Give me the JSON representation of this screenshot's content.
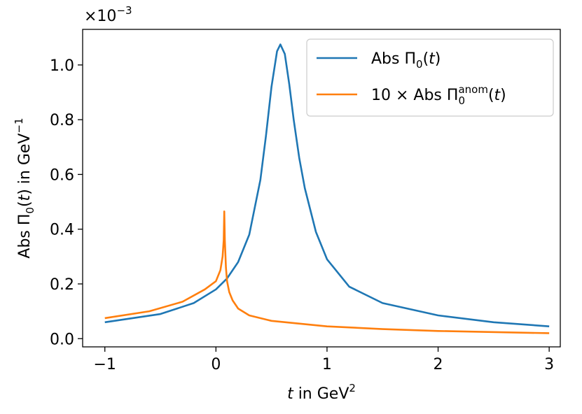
{
  "chart_data": {
    "type": "line",
    "axis_multiplier": [
      {
        "text": "×10"
      },
      {
        "text": "−3",
        "sup": true
      }
    ],
    "x_label": [
      {
        "text": "t",
        "italic": true
      },
      {
        "text": " in GeV"
      },
      {
        "text": "2",
        "sup": true
      }
    ],
    "y_label": [
      {
        "text": "Abs Π"
      },
      {
        "text": "0",
        "sub": true
      },
      {
        "text": "("
      },
      {
        "text": "t",
        "italic": true
      },
      {
        "text": ") in GeV"
      },
      {
        "text": "−1",
        "sup": true
      }
    ],
    "xlim": [
      -1.2,
      3.1
    ],
    "xticks": [
      {
        "value": -1,
        "label": "−1"
      },
      0,
      1,
      2,
      3
    ],
    "ylim": [
      -0.03,
      1.13
    ],
    "yticks": [
      {
        "value": 0,
        "label": "0.0"
      },
      0.2,
      0.4,
      0.6,
      0.8,
      {
        "value": 1,
        "label": "1.0"
      }
    ],
    "legend": "upper right",
    "series": [
      {
        "name": [
          {
            "text": "Abs Π"
          },
          {
            "text": "0",
            "sub": true
          },
          {
            "text": "("
          },
          {
            "text": "t",
            "italic": true
          },
          {
            "text": ")"
          }
        ],
        "color": "#1f77b4",
        "x": [
          -1,
          -0.5,
          -0.2,
          0,
          0.1,
          0.2,
          0.3,
          0.4,
          0.45,
          0.5,
          0.55,
          0.58,
          0.62,
          0.66,
          0.7,
          0.75,
          0.8,
          0.9,
          1.0,
          1.2,
          1.5,
          2.0,
          2.5,
          3.0
        ],
        "values": [
          0.06,
          0.09,
          0.13,
          0.18,
          0.22,
          0.28,
          0.38,
          0.58,
          0.74,
          0.92,
          1.05,
          1.075,
          1.04,
          0.93,
          0.8,
          0.66,
          0.55,
          0.39,
          0.29,
          0.19,
          0.13,
          0.085,
          0.06,
          0.045
        ]
      },
      {
        "name": [
          {
            "text": "10 × Abs Π"
          },
          {
            "text": "0",
            "sub": true
          },
          {
            "text": "anom",
            "sup": true
          },
          {
            "text": "("
          },
          {
            "text": "t",
            "italic": true
          },
          {
            "text": ")"
          }
        ],
        "color": "#ff7f0e",
        "x": [
          -1,
          -0.6,
          -0.3,
          -0.1,
          0,
          0.04,
          0.06,
          0.07,
          0.075,
          0.08,
          0.09,
          0.1,
          0.12,
          0.15,
          0.2,
          0.3,
          0.5,
          1,
          1.5,
          2,
          3
        ],
        "values": [
          0.075,
          0.1,
          0.135,
          0.18,
          0.21,
          0.25,
          0.3,
          0.36,
          0.465,
          0.36,
          0.26,
          0.21,
          0.17,
          0.14,
          0.11,
          0.085,
          0.065,
          0.045,
          0.035,
          0.028,
          0.02
        ]
      }
    ]
  }
}
